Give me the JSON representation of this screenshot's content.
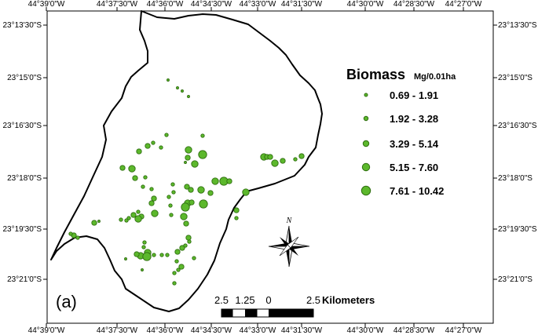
{
  "top_axis_labels": [
    "44°39'0\"W",
    "44°37'30\"W",
    "44°36'0\"W",
    "44°34'30\"W",
    "44°33'0\"W",
    "44°31'30\"W",
    "44°30'0\"W",
    "44°28'30\"W",
    "44°27'0\"W"
  ],
  "bottom_axis_labels": [
    "44°39'0\"W",
    "44°37'30\"W",
    "44°36'0\"W",
    "44°34'30\"W",
    "44°33'0\"W",
    "44°31'30\"W",
    "44°30'0\"W",
    "44°28'30\"W",
    "44°27'0\"W"
  ],
  "left_axis_labels": [
    "23°13'30\"S",
    "23°15'0\"S",
    "23°16'30\"S",
    "23°18'0\"S",
    "23°19'30\"S",
    "23°21'0\"S"
  ],
  "right_axis_labels": [
    "23°13'30\"S",
    "23°15'0\"S",
    "23°16'30\"S",
    "23°18'0\"S",
    "23°19'30\"S",
    "23°21'0\"S"
  ],
  "legend": {
    "title": "Biomass",
    "unit": "Mg/0.01ha",
    "classes": [
      {
        "label": "0.69 - 1.91"
      },
      {
        "label": "1.92 - 3.28"
      },
      {
        "label": "3.29 - 5.14"
      },
      {
        "label": "5.15 - 7.60"
      },
      {
        "label": "7.61 - 10.42"
      }
    ]
  },
  "panel_label": "(a)",
  "scale_bar": {
    "ticks": [
      "2.5",
      "1.25",
      "0",
      "2.5"
    ],
    "unit": "Kilometers"
  },
  "north_arrow": {
    "label": "N"
  },
  "colors": {
    "point_fill": "#5cb82c",
    "point_stroke": "#2f6e10",
    "boundary": "#000000"
  }
}
